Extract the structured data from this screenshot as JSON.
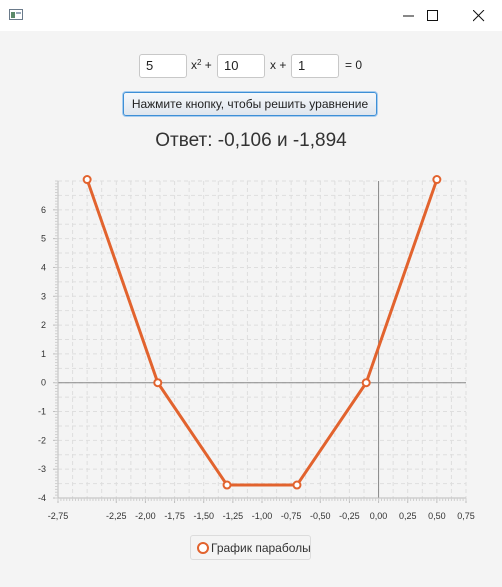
{
  "window": {
    "controls": [
      "minimize-icon",
      "maximize-icon",
      "close-icon"
    ]
  },
  "equation": {
    "a": "5",
    "b": "10",
    "c": "1",
    "x2_label": "x",
    "x2_sup": "2",
    "plus1": "+",
    "x_label": "x +",
    "eq_zero": "= 0"
  },
  "solve_button": {
    "label": "Нажмите кнопку, чтобы решить уравнение"
  },
  "answer": {
    "text": "Ответ: -0,106 и -1,894"
  },
  "chart_data": {
    "type": "line",
    "title": "",
    "xlabel": "",
    "ylabel": "",
    "xlim": [
      -2.75,
      0.75
    ],
    "ylim": [
      -4,
      7
    ],
    "x_ticks": [
      -2.75,
      -2.25,
      -2.0,
      -1.75,
      -1.5,
      -1.25,
      -1.0,
      -0.75,
      -0.5,
      -0.25,
      0.0,
      0.25,
      0.5,
      0.75
    ],
    "x_tick_labels": [
      "-2,75",
      "-2,25",
      "-2,00",
      "-1,75",
      "-1,50",
      "-1,25",
      "-1,00",
      "-0,75",
      "-0,50",
      "-0,25",
      "0,00",
      "0,25",
      "0,50",
      "0,75"
    ],
    "y_ticks": [
      -4,
      -3,
      -2,
      -1,
      0,
      1,
      2,
      3,
      4,
      5,
      6
    ],
    "y_tick_labels": [
      "-4",
      "-3",
      "-2",
      "-1",
      "0",
      "1",
      "2",
      "3",
      "4",
      "5",
      "6"
    ],
    "grid": true,
    "legend_position": "bottom-center",
    "series": [
      {
        "name": "График параболы",
        "color": "#e2632e",
        "x": [
          -2.5,
          -1.894,
          -1.3,
          -0.7,
          -0.106,
          0.5
        ],
        "y": [
          7.05,
          0,
          -3.55,
          -3.55,
          0,
          7.05
        ]
      }
    ]
  }
}
